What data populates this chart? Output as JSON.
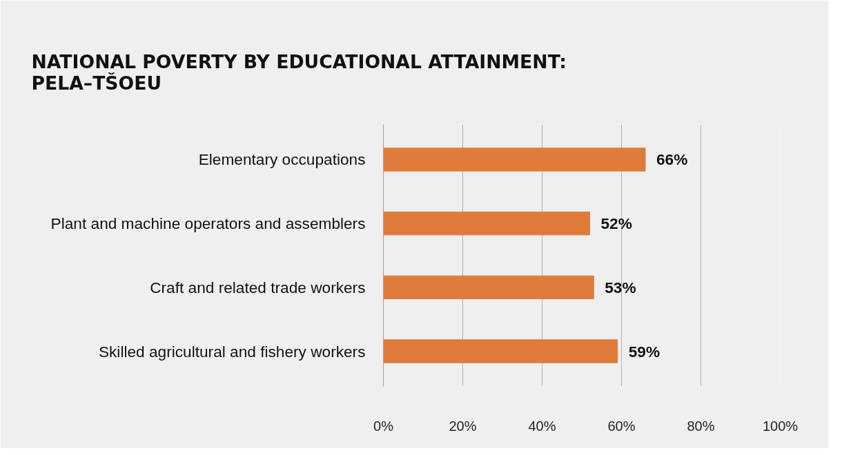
{
  "chart_data": {
    "type": "bar",
    "orientation": "horizontal",
    "title": "NATIONAL POVERTY BY EDUCATIONAL ATTAINMENT: PELA–TŠOEU",
    "categories": [
      "Elementary occupations",
      "Plant and machine operators and assemblers",
      "Craft and related trade workers",
      "Skilled agricultural and fishery workers"
    ],
    "values": [
      66,
      52,
      53,
      59
    ],
    "color": "#e07b39",
    "value_labels": [
      "66%",
      "52%",
      "53%",
      "59%"
    ],
    "xlim": [
      0,
      100
    ],
    "xticks": [
      {
        "value": 0,
        "label": "0%"
      },
      {
        "value": 20,
        "label": "20%"
      },
      {
        "value": 40,
        "label": "40%"
      },
      {
        "value": 60,
        "label": "60%"
      },
      {
        "value": 80,
        "label": "80%"
      },
      {
        "value": 100,
        "label": "100%"
      }
    ],
    "grid": "x"
  }
}
